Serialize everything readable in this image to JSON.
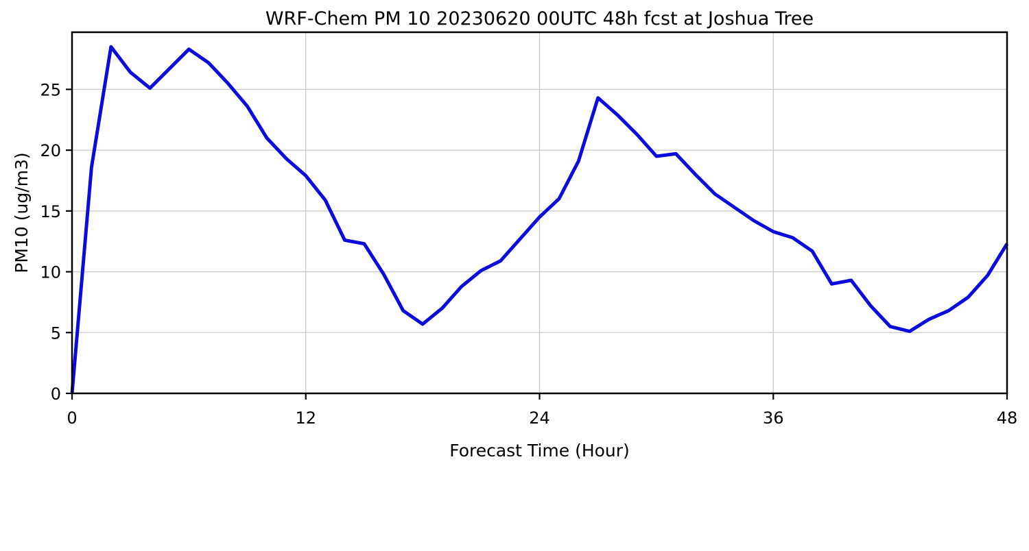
{
  "chart_data": {
    "type": "line",
    "title": "WRF-Chem PM 10  20230620 00UTC 48h fcst at Joshua Tree",
    "xlabel": "Forecast Time (Hour)",
    "ylabel": "PM10  (ug/m3)",
    "xlim": [
      0,
      48
    ],
    "ylim": [
      0,
      29.7
    ],
    "xticks": [
      0,
      12,
      24,
      36,
      48
    ],
    "yticks": [
      0,
      5,
      10,
      15,
      20,
      25
    ],
    "grid": true,
    "legend": "none",
    "line_color": "#0b0bdc",
    "line_width": 5,
    "grid_color": "#c9c9c9",
    "border_color": "#000000",
    "hours": [
      0,
      1,
      2,
      3,
      4,
      5,
      6,
      7,
      8,
      9,
      10,
      11,
      12,
      13,
      14,
      15,
      16,
      17,
      18,
      19,
      20,
      21,
      22,
      23,
      24,
      25,
      26,
      27,
      28,
      29,
      30,
      31,
      32,
      33,
      34,
      35,
      36,
      37,
      38,
      39,
      40,
      41,
      42,
      43,
      44,
      45,
      46,
      47,
      48
    ],
    "values": [
      0.0,
      18.6,
      28.5,
      26.4,
      25.1,
      26.7,
      28.3,
      27.2,
      25.5,
      23.6,
      21.0,
      19.3,
      17.9,
      15.9,
      12.6,
      12.3,
      9.8,
      6.8,
      5.7,
      7.0,
      8.8,
      10.1,
      10.9,
      12.7,
      14.5,
      16.0,
      19.1,
      24.3,
      22.9,
      21.3,
      19.5,
      19.7,
      18.0,
      16.4,
      15.3,
      14.2,
      13.3,
      12.8,
      11.7,
      9.0,
      9.3,
      7.2,
      5.5,
      5.1,
      6.1,
      6.8,
      7.9,
      9.7,
      12.3
    ]
  }
}
